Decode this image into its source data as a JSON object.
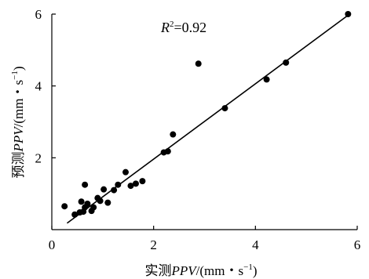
{
  "chart_data": {
    "type": "scatter",
    "title": "",
    "xlabel": "实测PPV/(mm・s⁻¹)",
    "ylabel": "预测PPV/(mm・s⁻¹)",
    "xlabel_parts": {
      "prefix": "实测",
      "italic": "PPV",
      "unit_open": "/(mm・s",
      "sup": "−1",
      "unit_close": ")"
    },
    "ylabel_parts": {
      "prefix": "预测",
      "italic": "PPV",
      "unit_open": "/(mm・s",
      "sup": "−1",
      "unit_close": ")"
    },
    "xlim": [
      0,
      6
    ],
    "ylim": [
      0,
      6
    ],
    "xticks": [
      0,
      2,
      4,
      6
    ],
    "yticks": [
      2,
      4,
      6
    ],
    "xtick_labels": [
      "0",
      "2",
      "4",
      "6"
    ],
    "ytick_labels": [
      "2",
      "4",
      "6"
    ],
    "grid": false,
    "annotation": {
      "label": "R",
      "sup": "2",
      "value": "=0.92"
    },
    "fit_line": {
      "x": [
        0.3,
        5.85
      ],
      "y": [
        0.18,
        6.0
      ]
    },
    "points": [
      {
        "x": 0.25,
        "y": 0.65
      },
      {
        "x": 0.45,
        "y": 0.42
      },
      {
        "x": 0.55,
        "y": 0.48
      },
      {
        "x": 0.58,
        "y": 0.78
      },
      {
        "x": 0.62,
        "y": 0.5
      },
      {
        "x": 0.65,
        "y": 0.62
      },
      {
        "x": 0.65,
        "y": 1.25
      },
      {
        "x": 0.7,
        "y": 0.72
      },
      {
        "x": 0.78,
        "y": 0.52
      },
      {
        "x": 0.82,
        "y": 0.62
      },
      {
        "x": 0.9,
        "y": 0.88
      },
      {
        "x": 0.95,
        "y": 0.8
      },
      {
        "x": 1.02,
        "y": 1.12
      },
      {
        "x": 1.1,
        "y": 0.75
      },
      {
        "x": 1.22,
        "y": 1.1
      },
      {
        "x": 1.3,
        "y": 1.25
      },
      {
        "x": 1.45,
        "y": 1.6
      },
      {
        "x": 1.55,
        "y": 1.22
      },
      {
        "x": 1.65,
        "y": 1.28
      },
      {
        "x": 1.78,
        "y": 1.35
      },
      {
        "x": 2.2,
        "y": 2.15
      },
      {
        "x": 2.28,
        "y": 2.18
      },
      {
        "x": 2.38,
        "y": 2.65
      },
      {
        "x": 2.88,
        "y": 4.62
      },
      {
        "x": 3.4,
        "y": 3.38
      },
      {
        "x": 4.22,
        "y": 4.18
      },
      {
        "x": 4.6,
        "y": 4.65
      },
      {
        "x": 5.82,
        "y": 6.0
      }
    ]
  }
}
